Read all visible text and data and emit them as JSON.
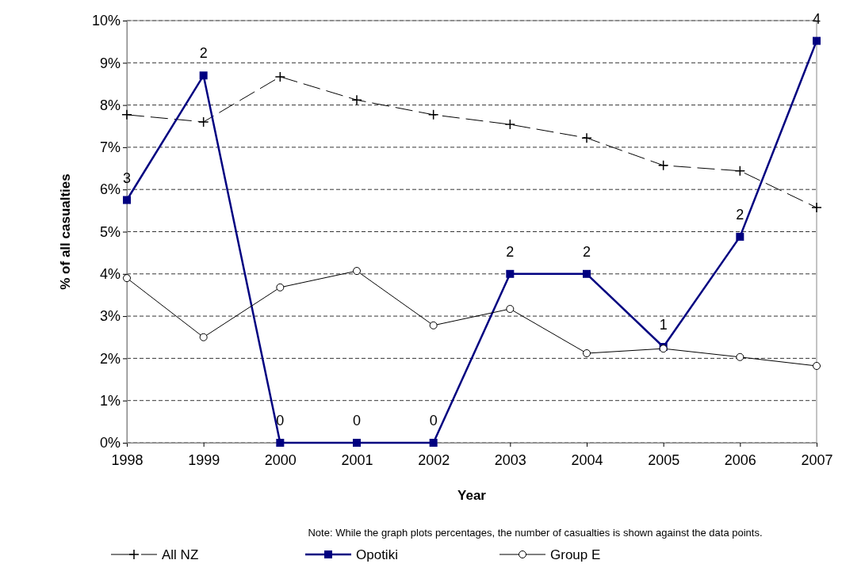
{
  "chart_data": {
    "type": "line",
    "xlabel": "Year",
    "ylabel": "% of all casualties",
    "x": [
      1998,
      1999,
      2000,
      2001,
      2002,
      2003,
      2004,
      2005,
      2006,
      2007
    ],
    "xlim": [
      1998,
      2007
    ],
    "xticks": [
      1998,
      1999,
      2000,
      2001,
      2002,
      2003,
      2004,
      2005,
      2006,
      2007
    ],
    "ylim": [
      0,
      10
    ],
    "yticks": [
      {
        "value": 0,
        "label": "0%"
      },
      {
        "value": 1,
        "label": "1%"
      },
      {
        "value": 2,
        "label": "2%"
      },
      {
        "value": 3,
        "label": "3%"
      },
      {
        "value": 4,
        "label": "4%"
      },
      {
        "value": 5,
        "label": "5%"
      },
      {
        "value": 6,
        "label": "6%"
      },
      {
        "value": 7,
        "label": "7%"
      },
      {
        "value": 8,
        "label": "8%"
      },
      {
        "value": 9,
        "label": "9%"
      },
      {
        "value": 10,
        "label": "10%"
      }
    ],
    "grid": "y",
    "legend": "bottom",
    "series": [
      {
        "name": "All NZ",
        "color": "#000000",
        "marker": "cross",
        "line_style": "dashed",
        "values": [
          7.77,
          7.6,
          8.67,
          8.12,
          7.77,
          7.54,
          7.22,
          6.57,
          6.44,
          5.57
        ]
      },
      {
        "name": "Opotiki",
        "color": "#000080",
        "marker": "square",
        "line_style": "solid",
        "values": [
          5.75,
          8.7,
          0,
          0,
          0,
          4.0,
          4.0,
          2.27,
          4.88,
          9.52
        ]
      },
      {
        "name": "Group E",
        "color": "#000000",
        "marker": "circle",
        "line_style": "solid",
        "values": [
          3.9,
          2.5,
          3.68,
          4.07,
          2.78,
          3.17,
          2.12,
          2.23,
          2.03,
          1.82
        ]
      }
    ],
    "annotations": [
      {
        "text": "3",
        "x": 1998,
        "y": 5.75
      },
      {
        "text": "2",
        "x": 1999,
        "y": 8.7
      },
      {
        "text": "0",
        "x": 2000,
        "y": 0
      },
      {
        "text": "0",
        "x": 2001,
        "y": 0
      },
      {
        "text": "0",
        "x": 2002,
        "y": 0
      },
      {
        "text": "2",
        "x": 2003,
        "y": 4.0
      },
      {
        "text": "2",
        "x": 2004,
        "y": 4.0
      },
      {
        "text": "1",
        "x": 2005,
        "y": 2.27
      },
      {
        "text": "2",
        "x": 2006,
        "y": 4.88
      },
      {
        "text": "4",
        "x": 2007,
        "y": 9.52
      },
      "Note: While the graph plots percentages, the number of casualties is shown against the data points."
    ]
  }
}
